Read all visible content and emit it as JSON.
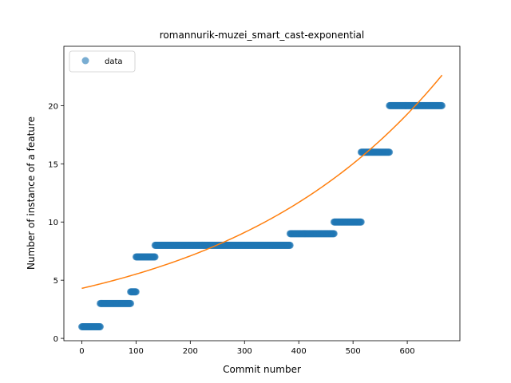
{
  "chart_data": {
    "type": "scatter",
    "title": "romannurik-muzei_smart_cast-exponential",
    "xlabel": "Commit number",
    "ylabel": "Number of instance of a feature",
    "xlim": [
      -33,
      697
    ],
    "ylim": [
      -0.2,
      25.1
    ],
    "xticks": [
      0,
      100,
      200,
      300,
      400,
      500,
      600
    ],
    "yticks": [
      0,
      5,
      10,
      15,
      20
    ],
    "grid": false,
    "legend": {
      "placement": "top-left",
      "entries": [
        "data"
      ]
    },
    "colors": {
      "data": "#1f77b4",
      "fit": "#ff7f0e"
    },
    "series": [
      {
        "name": "data",
        "kind": "scatter",
        "segments": [
          {
            "x_start": 0,
            "x_end": 34,
            "y": 1
          },
          {
            "x_start": 34,
            "x_end": 90,
            "y": 3
          },
          {
            "x_start": 90,
            "x_end": 100,
            "y": 4
          },
          {
            "x_start": 100,
            "x_end": 135,
            "y": 7
          },
          {
            "x_start": 135,
            "x_end": 384,
            "y": 8
          },
          {
            "x_start": 384,
            "x_end": 465,
            "y": 9
          },
          {
            "x_start": 465,
            "x_end": 515,
            "y": 10
          },
          {
            "x_start": 515,
            "x_end": 567,
            "y": 16
          },
          {
            "x_start": 567,
            "x_end": 664,
            "y": 20
          }
        ]
      },
      {
        "kind": "line",
        "model": "exponential",
        "a": 4.3,
        "b": 0.0025,
        "x_start": 0,
        "x_end": 664
      }
    ]
  }
}
